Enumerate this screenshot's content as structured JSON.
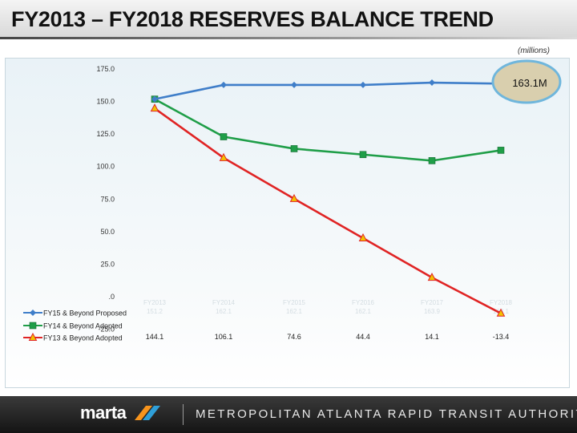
{
  "header": {
    "title": "FY2013 – FY2018 RESERVES BALANCE TREND",
    "units": "(millions)"
  },
  "colors": {
    "proposed": "#3f7ec9",
    "adopted14": "#1f9e48",
    "adopted13": "#e02424",
    "callout_fill": "#d9cfae",
    "callout_ring": "#6fb6dc"
  },
  "chart_data": {
    "type": "line",
    "title": "FY2013 – FY2018 RESERVES BALANCE TREND",
    "ylabel": "(millions)",
    "ylim": [
      -25,
      175
    ],
    "yticks": [
      175,
      150,
      125,
      100,
      75,
      50,
      25,
      0,
      -25
    ],
    "ytick_labels": [
      "175.0",
      "150.0",
      "125.0",
      "100.0",
      "75.0",
      "50.0",
      "25.0",
      ".0",
      "-25.0"
    ],
    "categories": [
      "FY2013",
      "FY2014",
      "FY2015",
      "FY2016",
      "FY2017",
      "FY2018"
    ],
    "series": [
      {
        "name": "FY15 & Beyond Proposed",
        "values": [
          151.2,
          162.1,
          162.1,
          162.1,
          163.9,
          163.1
        ],
        "color": "#3f7ec9",
        "marker": "diamond"
      },
      {
        "name": "FY14 & Beyond Adopted",
        "values": [
          151.2,
          122.3,
          113.1,
          108.6,
          103.9,
          111.9
        ],
        "color": "#1f9e48",
        "marker": "square"
      },
      {
        "name": "FY13 & Beyond Adopted",
        "values": [
          144.1,
          106.1,
          74.6,
          44.4,
          14.1,
          -13.4
        ],
        "color": "#e02424",
        "marker": "triangle",
        "table_labels": [
          "144.1",
          "106.1",
          "74.6",
          "44.4",
          "14.1",
          "-13.4"
        ]
      }
    ],
    "annotation": "163.1M",
    "legend_position": "bottom-left"
  },
  "footer": {
    "logo": "marta",
    "agency": "METROPOLITAN ATLANTA RAPID TRANSIT AUTHORITY"
  }
}
